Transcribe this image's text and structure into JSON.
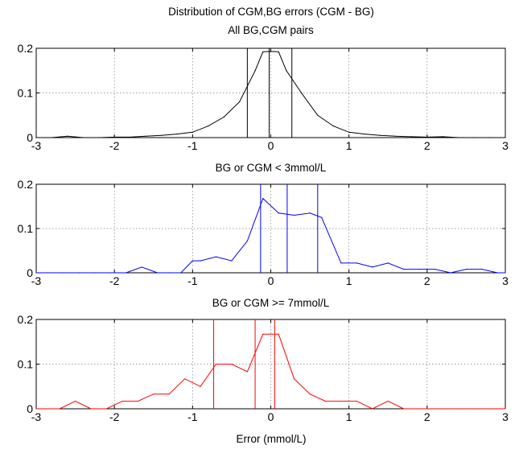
{
  "figure": {
    "title_line1": "Distribution of CGM,BG errors (CGM - BG)",
    "xlabel": "Error (mmol/L)"
  },
  "chart_data": [
    {
      "type": "line",
      "title": "All BG,CGM pairs",
      "xlim": [
        -3,
        3
      ],
      "ylim": [
        0,
        0.2
      ],
      "xticks": [
        -3,
        -2,
        -1,
        0,
        1,
        2,
        3
      ],
      "yticks": [
        0,
        0.1,
        0.2
      ],
      "xtick_labels": [
        "-3",
        "-2",
        "-1",
        "0",
        "1",
        "2",
        "3"
      ],
      "ytick_labels": [
        "0",
        "0.1",
        "0.2"
      ],
      "grid": true,
      "color": "#000000",
      "x": [
        -3.0,
        -2.8,
        -2.6,
        -2.4,
        -2.2,
        -2.0,
        -1.8,
        -1.6,
        -1.4,
        -1.2,
        -1.0,
        -0.8,
        -0.6,
        -0.4,
        -0.2,
        -0.1,
        0.0,
        0.1,
        0.2,
        0.4,
        0.6,
        0.8,
        1.0,
        1.2,
        1.4,
        1.6,
        1.8,
        2.0,
        2.2,
        2.4,
        2.6,
        2.8,
        3.0
      ],
      "y": [
        0.0,
        0.0,
        0.003,
        0.0,
        0.0,
        0.001,
        0.001,
        0.003,
        0.005,
        0.008,
        0.012,
        0.026,
        0.046,
        0.08,
        0.15,
        0.192,
        0.193,
        0.192,
        0.15,
        0.098,
        0.05,
        0.026,
        0.012,
        0.008,
        0.005,
        0.003,
        0.002,
        0.001,
        0.002,
        0.0,
        0.0,
        0.0,
        0.0
      ],
      "vlines": [
        -0.3,
        -0.02,
        0.27
      ]
    },
    {
      "type": "line",
      "title": "BG or CGM < 3mmol/L",
      "xlim": [
        -3,
        3
      ],
      "ylim": [
        0,
        0.2
      ],
      "xticks": [
        -3,
        -2,
        -1,
        0,
        1,
        2,
        3
      ],
      "yticks": [
        0,
        0.1,
        0.2
      ],
      "xtick_labels": [
        "-3",
        "-2",
        "-1",
        "0",
        "1",
        "2",
        "3"
      ],
      "ytick_labels": [
        "0",
        "0.1",
        "0.2"
      ],
      "grid": true,
      "color": "#0000ff",
      "x": [
        -3.0,
        -2.85,
        -2.65,
        -2.45,
        -2.25,
        -2.05,
        -1.85,
        -1.65,
        -1.45,
        -1.3,
        -1.15,
        -1.0,
        -0.9,
        -0.7,
        -0.5,
        -0.3,
        -0.1,
        0.1,
        0.3,
        0.5,
        0.65,
        0.9,
        1.1,
        1.3,
        1.5,
        1.7,
        1.9,
        2.1,
        2.3,
        2.5,
        2.7,
        2.9,
        3.0
      ],
      "y": [
        0.0,
        0.0,
        0.0,
        0.0,
        0.0,
        0.0,
        0.0,
        0.013,
        0.0,
        0.0,
        0.0,
        0.027,
        0.027,
        0.036,
        0.027,
        0.072,
        0.168,
        0.135,
        0.13,
        0.135,
        0.125,
        0.022,
        0.022,
        0.013,
        0.022,
        0.008,
        0.008,
        0.008,
        0.0,
        0.008,
        0.008,
        0.0,
        0.0
      ],
      "vlines": [
        -0.13,
        0.21,
        0.6
      ]
    },
    {
      "type": "line",
      "title": "BG or CGM >=  7mmol/L",
      "xlim": [
        -3,
        3
      ],
      "ylim": [
        0,
        0.2
      ],
      "xticks": [
        -3,
        -2,
        -1,
        0,
        1,
        2,
        3
      ],
      "yticks": [
        0,
        0.1,
        0.2
      ],
      "xtick_labels": [
        "-3",
        "-2",
        "-1",
        "0",
        "1",
        "2",
        "3"
      ],
      "ytick_labels": [
        "0",
        "0.1",
        "0.2"
      ],
      "grid": true,
      "color": "#ff0000",
      "x": [
        -3.0,
        -2.7,
        -2.5,
        -2.3,
        -2.1,
        -1.9,
        -1.7,
        -1.5,
        -1.3,
        -1.1,
        -0.9,
        -0.7,
        -0.5,
        -0.3,
        -0.1,
        0.1,
        0.3,
        0.5,
        0.7,
        0.9,
        1.1,
        1.3,
        1.5,
        1.7,
        1.9,
        2.1,
        2.3,
        2.5,
        2.7,
        2.9,
        3.0
      ],
      "y": [
        0.0,
        0.0,
        0.017,
        0.0,
        0.0,
        0.017,
        0.017,
        0.033,
        0.033,
        0.067,
        0.05,
        0.1,
        0.1,
        0.083,
        0.167,
        0.167,
        0.067,
        0.033,
        0.017,
        0.017,
        0.017,
        0.0,
        0.017,
        0.0,
        0.0,
        0.0,
        0.0,
        0.0,
        0.0,
        0.0,
        0.0
      ],
      "vlines": [
        -0.73,
        -0.2,
        0.05
      ]
    }
  ]
}
